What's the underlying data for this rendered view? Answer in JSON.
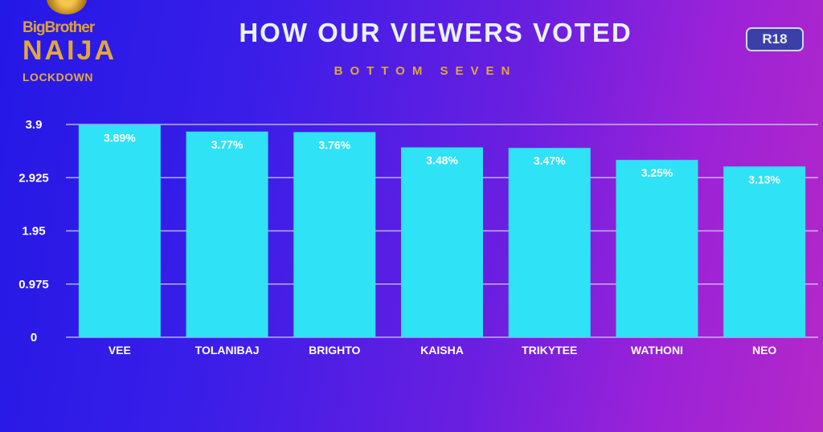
{
  "logo": {
    "line1": "BigBrother",
    "line2": "NAIJA",
    "line3": "LOCKDOWN"
  },
  "rating_badge": "R18",
  "chart_data": {
    "type": "bar",
    "title": "HOW OUR VIEWERS VOTED",
    "subtitle": "BOTTOM SEVEN",
    "xlabel": "",
    "ylabel": "",
    "ylim": [
      0,
      3.9
    ],
    "yticks": [
      "0",
      "0.975",
      "1.95",
      "2.925",
      "3.9"
    ],
    "categories": [
      "VEE",
      "TOLANIBAJ",
      "BRIGHTO",
      "KAISHA",
      "TRIKYTEE",
      "WATHONI",
      "NEO"
    ],
    "values": [
      3.89,
      3.77,
      3.76,
      3.48,
      3.47,
      3.25,
      3.13
    ],
    "data_labels": [
      "3.89%",
      "3.77%",
      "3.76%",
      "3.48%",
      "3.47%",
      "3.25%",
      "3.13%"
    ],
    "grid": true,
    "bar_color": "#2fe2f6"
  }
}
